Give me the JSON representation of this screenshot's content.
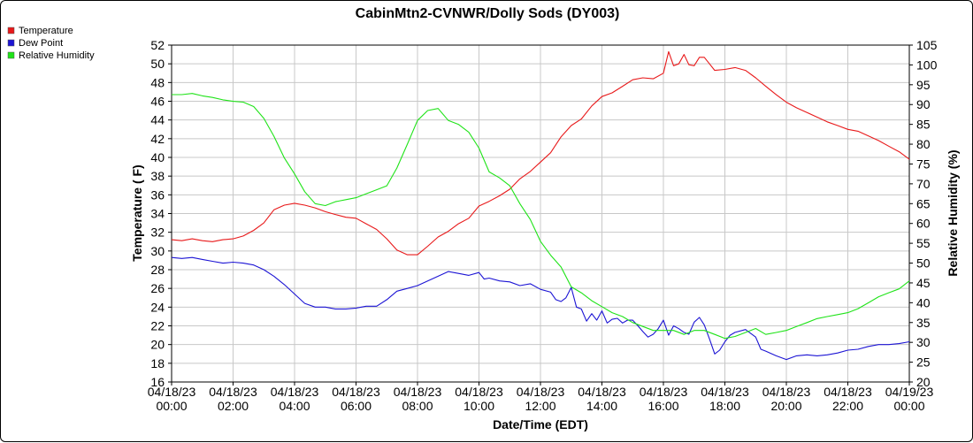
{
  "chart_data": {
    "type": "line",
    "title": "CabinMtn2-CVNWR/Dolly Sods (DY003)",
    "xlabel": "Date/Time (EDT)",
    "ylabel": "Temperature ( F)",
    "y2label": "Relative Humidity (%)",
    "ylim": [
      16,
      52
    ],
    "y2lim": [
      20,
      105
    ],
    "xlim": [
      0,
      24
    ],
    "yticks": [
      "16",
      "18",
      "20",
      "22",
      "24",
      "26",
      "28",
      "30",
      "32",
      "34",
      "36",
      "38",
      "40",
      "42",
      "44",
      "46",
      "48",
      "50",
      "52"
    ],
    "y2ticks": [
      "20",
      "25",
      "30",
      "35",
      "40",
      "45",
      "50",
      "55",
      "60",
      "65",
      "70",
      "75",
      "80",
      "85",
      "90",
      "95",
      "100",
      "105"
    ],
    "xticks": [
      {
        "date": "04/18/23",
        "time": "00:00"
      },
      {
        "date": "04/18/23",
        "time": "02:00"
      },
      {
        "date": "04/18/23",
        "time": "04:00"
      },
      {
        "date": "04/18/23",
        "time": "06:00"
      },
      {
        "date": "04/18/23",
        "time": "08:00"
      },
      {
        "date": "04/18/23",
        "time": "10:00"
      },
      {
        "date": "04/18/23",
        "time": "12:00"
      },
      {
        "date": "04/18/23",
        "time": "14:00"
      },
      {
        "date": "04/18/23",
        "time": "16:00"
      },
      {
        "date": "04/18/23",
        "time": "18:00"
      },
      {
        "date": "04/18/23",
        "time": "20:00"
      },
      {
        "date": "04/18/23",
        "time": "22:00"
      },
      {
        "date": "04/19/23",
        "time": "00:00"
      }
    ],
    "grid": true,
    "legend_position": "top-left",
    "series": [
      {
        "name": "Temperature",
        "color": "#e8191a",
        "axis": "left",
        "x": [
          0,
          0.33,
          0.67,
          1,
          1.33,
          1.67,
          2,
          2.33,
          2.67,
          3,
          3.33,
          3.67,
          4,
          4.33,
          4.67,
          5,
          5.33,
          5.67,
          6,
          6.33,
          6.67,
          7,
          7.33,
          7.67,
          8,
          8.33,
          8.67,
          9,
          9.33,
          9.67,
          10,
          10.33,
          10.67,
          11,
          11.33,
          11.67,
          12,
          12.33,
          12.67,
          13,
          13.33,
          13.67,
          14,
          14.33,
          14.67,
          15,
          15.33,
          15.67,
          16,
          16.17,
          16.33,
          16.5,
          16.67,
          16.83,
          17,
          17.17,
          17.33,
          17.5,
          17.67,
          18,
          18.33,
          18.67,
          19,
          19.33,
          19.67,
          20,
          20.33,
          20.67,
          21,
          21.33,
          21.67,
          22,
          22.33,
          22.67,
          23,
          23.33,
          23.67,
          24
        ],
        "values": [
          31.2,
          31.1,
          31.3,
          31.1,
          31,
          31.2,
          31.3,
          31.6,
          32.2,
          33,
          34.4,
          34.9,
          35.1,
          34.9,
          34.6,
          34.2,
          33.9,
          33.6,
          33.5,
          32.9,
          32.3,
          31.3,
          30.1,
          29.6,
          29.6,
          30.5,
          31.5,
          32.1,
          32.9,
          33.5,
          34.8,
          35.3,
          35.9,
          36.6,
          37.7,
          38.5,
          39.5,
          40.5,
          42.2,
          43.4,
          44.1,
          45.5,
          46.5,
          46.9,
          47.6,
          48.3,
          48.5,
          48.4,
          49.0,
          51.3,
          49.8,
          50.0,
          51.0,
          49.9,
          49.8,
          50.7,
          50.7,
          50.0,
          49.3,
          49.4,
          49.6,
          49.3,
          48.5,
          47.6,
          46.7,
          45.9,
          45.3,
          44.8,
          44.3,
          43.8,
          43.4,
          43.0,
          42.8,
          42.3,
          41.8,
          41.2,
          40.6,
          39.8
        ]
      },
      {
        "name": "Dew Point",
        "color": "#1c14d4",
        "axis": "left",
        "x": [
          0,
          0.33,
          0.67,
          1,
          1.33,
          1.67,
          2,
          2.33,
          2.67,
          3,
          3.33,
          3.67,
          4,
          4.33,
          4.67,
          5,
          5.33,
          5.67,
          6,
          6.33,
          6.67,
          7,
          7.33,
          7.67,
          8,
          8.33,
          8.67,
          9,
          9.33,
          9.67,
          10,
          10.17,
          10.33,
          10.67,
          11,
          11.33,
          11.67,
          12,
          12.33,
          12.5,
          12.67,
          12.83,
          13,
          13.17,
          13.33,
          13.5,
          13.67,
          13.83,
          14,
          14.17,
          14.33,
          14.5,
          14.67,
          14.83,
          15,
          15.17,
          15.33,
          15.5,
          15.67,
          15.83,
          16,
          16.17,
          16.33,
          16.5,
          16.67,
          16.83,
          17,
          17.17,
          17.33,
          17.5,
          17.67,
          17.83,
          18,
          18.17,
          18.33,
          18.67,
          19,
          19.17,
          19.33,
          19.67,
          20,
          20.33,
          20.67,
          21,
          21.33,
          21.67,
          22,
          22.33,
          22.67,
          23,
          23.33,
          23.67,
          24
        ],
        "values": [
          29.3,
          29.2,
          29.3,
          29.1,
          28.9,
          28.7,
          28.8,
          28.7,
          28.5,
          28.0,
          27.3,
          26.4,
          25.4,
          24.4,
          24.0,
          24.0,
          23.8,
          23.8,
          23.9,
          24.1,
          24.1,
          24.8,
          25.7,
          26.0,
          26.3,
          26.8,
          27.3,
          27.8,
          27.6,
          27.4,
          27.7,
          27.0,
          27.1,
          26.8,
          26.7,
          26.3,
          26.5,
          25.9,
          25.6,
          24.8,
          24.6,
          25.0,
          26.1,
          24.0,
          23.8,
          22.5,
          23.3,
          22.6,
          23.6,
          22.3,
          22.7,
          22.8,
          22.3,
          22.6,
          22.6,
          22.0,
          21.4,
          20.8,
          21.1,
          21.7,
          22.6,
          21.0,
          22.0,
          21.7,
          21.3,
          21.1,
          22.4,
          22.9,
          22.1,
          20.6,
          19.0,
          19.4,
          20.3,
          21.0,
          21.3,
          21.6,
          20.8,
          19.5,
          19.3,
          18.8,
          18.4,
          18.8,
          18.9,
          18.8,
          18.9,
          19.1,
          19.4,
          19.5,
          19.8,
          20.0,
          20.0,
          20.1,
          20.3
        ]
      },
      {
        "name": "Relative Humidity",
        "color": "#1fe318",
        "axis": "right",
        "x": [
          0,
          0.33,
          0.67,
          1,
          1.33,
          1.67,
          2,
          2.33,
          2.67,
          3,
          3.33,
          3.67,
          4,
          4.33,
          4.67,
          5,
          5.33,
          5.67,
          6,
          6.33,
          6.67,
          7,
          7.33,
          7.67,
          8,
          8.33,
          8.67,
          9,
          9.33,
          9.67,
          10,
          10.33,
          10.67,
          11,
          11.33,
          11.67,
          12,
          12.33,
          12.67,
          13,
          13.33,
          13.67,
          14,
          14.33,
          14.67,
          15,
          15.33,
          15.67,
          16,
          16.33,
          16.67,
          17,
          17.33,
          17.67,
          18,
          18.33,
          18.67,
          19,
          19.33,
          19.67,
          20,
          20.33,
          20.67,
          21,
          21.33,
          21.67,
          22,
          22.33,
          22.67,
          23,
          23.33,
          23.67,
          24
        ],
        "values": [
          92.5,
          92.5,
          92.8,
          92.2,
          91.8,
          91.2,
          90.8,
          90.6,
          89.5,
          86.5,
          82,
          76.5,
          72.5,
          68,
          65,
          64.5,
          65.5,
          66,
          66.5,
          67.5,
          68.5,
          69.5,
          74,
          80,
          86,
          88.5,
          89,
          86,
          85,
          83,
          79,
          73,
          71.5,
          69.5,
          65,
          61,
          55.5,
          52,
          49,
          44,
          42.5,
          40.5,
          39,
          37.5,
          36.5,
          35,
          34,
          33,
          33,
          33,
          32,
          33,
          33,
          32,
          31,
          31.5,
          32.5,
          33.5,
          32,
          32.5,
          33,
          34,
          35,
          36,
          36.5,
          37,
          37.5,
          38.5,
          40,
          41.5,
          42.5,
          43.5,
          45.5
        ]
      }
    ]
  }
}
